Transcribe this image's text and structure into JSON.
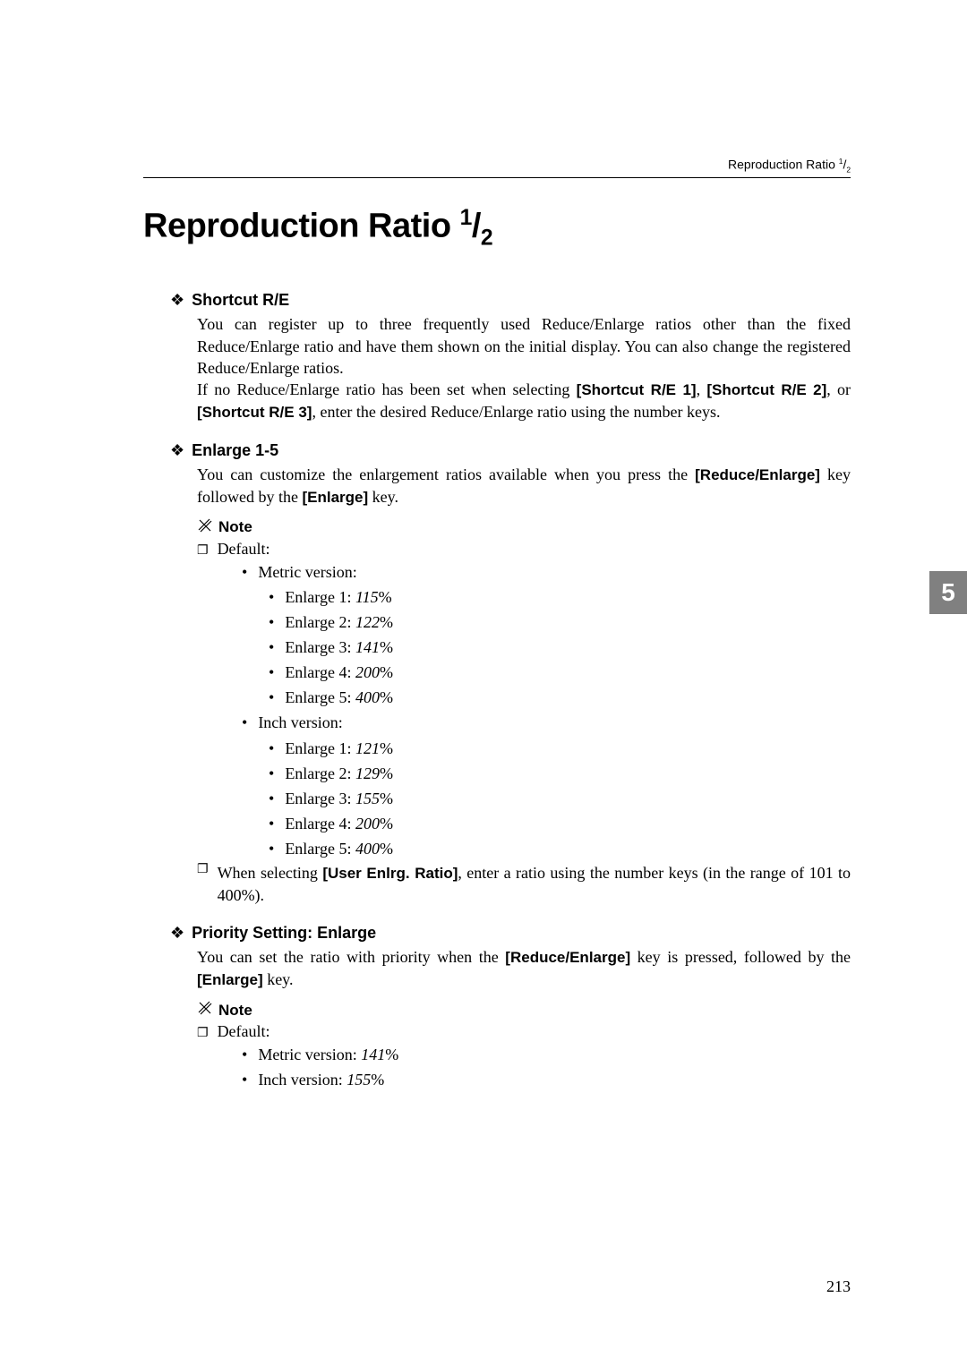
{
  "header": {
    "text_prefix": "Reproduction Ratio ",
    "fraction_num": "1",
    "fraction_den": "2"
  },
  "title": {
    "text_prefix": "Reproduction Ratio ",
    "fraction_num": "1",
    "fraction_den": "2"
  },
  "tab_number": "5",
  "page_number": "213",
  "sections": {
    "shortcut": {
      "title": "Shortcut R/E",
      "body_1": "You can register up to three frequently used Reduce/Enlarge ratios other than the fixed Reduce/Enlarge ratio and have them shown on the initial display. You can also change the registered Reduce/Enlarge ratios.",
      "body_2a": "If no Reduce/Enlarge ratio has been set when selecting ",
      "label_1": "[Shortcut R/E 1]",
      "body_2b": ", ",
      "label_2": "[Shortcut R/E 2]",
      "body_2c": ", or ",
      "label_3": "[Shortcut R/E 3]",
      "body_2d": ", enter the desired Reduce/Enlarge ratio using the number keys."
    },
    "enlarge15": {
      "title": "Enlarge 1-5",
      "body_a": "You can customize the enlargement ratios available when you press the ",
      "label_1": "[Reduce/Enlarge]",
      "body_b": " key followed by the ",
      "label_2": "[Enlarge]",
      "body_c": " key.",
      "note_label": "Note",
      "default_label": "Default:",
      "metric_label": "Metric version:",
      "metric_items": [
        {
          "prefix": "Enlarge 1: ",
          "value": "115",
          "suffix": "%"
        },
        {
          "prefix": "Enlarge 2: ",
          "value": "122",
          "suffix": "%"
        },
        {
          "prefix": "Enlarge 3: ",
          "value": "141",
          "suffix": "%"
        },
        {
          "prefix": "Enlarge 4: ",
          "value": "200",
          "suffix": "%"
        },
        {
          "prefix": "Enlarge 5: ",
          "value": "400",
          "suffix": "%"
        }
      ],
      "inch_label": "Inch version:",
      "inch_items": [
        {
          "prefix": "Enlarge 1: ",
          "value": "121",
          "suffix": "%"
        },
        {
          "prefix": "Enlarge 2: ",
          "value": "129",
          "suffix": "%"
        },
        {
          "prefix": "Enlarge 3: ",
          "value": "155",
          "suffix": "%"
        },
        {
          "prefix": "Enlarge 4: ",
          "value": "200",
          "suffix": "%"
        },
        {
          "prefix": "Enlarge 5: ",
          "value": "400",
          "suffix": "%"
        }
      ],
      "note2_a": "When selecting ",
      "note2_label": "[User Enlrg. Ratio]",
      "note2_b": ", enter a ratio using the number keys (in the range of 101 to 400%)."
    },
    "priority": {
      "title": "Priority Setting: Enlarge",
      "body_a": "You can set the ratio with priority when the ",
      "label_1": "[Reduce/Enlarge]",
      "body_b": " key is pressed, followed by the ",
      "label_2": "[Enlarge]",
      "body_c": " key.",
      "note_label": "Note",
      "default_label": "Default:",
      "metric_prefix": "Metric version: ",
      "metric_value": "141",
      "metric_suffix": "%",
      "inch_prefix": "Inch version: ",
      "inch_value": "155",
      "inch_suffix": "%"
    }
  },
  "icons": {
    "diamond": "❖",
    "square_bullet": "❐",
    "round_bullet": "•"
  }
}
